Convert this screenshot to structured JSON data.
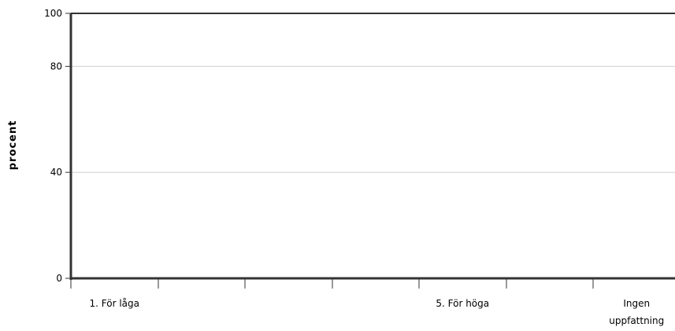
{
  "chart_data": {
    "type": "bar",
    "title": "",
    "xlabel": "",
    "ylabel": "procent",
    "ylim": [
      0,
      100
    ],
    "yticks": [
      0,
      40,
      80,
      100
    ],
    "grid": true,
    "categories": [
      "1. För låga",
      "",
      "",
      "",
      "5. För höga",
      "",
      "Ingen uppfattning"
    ],
    "tick_label_lines": [
      [
        "1. För låga"
      ],
      [],
      [],
      [],
      [
        "5. För höga"
      ],
      [],
      [
        "Ingen",
        "uppfattning"
      ]
    ],
    "series": [
      {
        "values": [
          0,
          0,
          0,
          0,
          0,
          0,
          0
        ]
      }
    ],
    "colors": {
      "axis": "#333333",
      "grid": "#cfcfcf",
      "text": "#000000"
    }
  }
}
